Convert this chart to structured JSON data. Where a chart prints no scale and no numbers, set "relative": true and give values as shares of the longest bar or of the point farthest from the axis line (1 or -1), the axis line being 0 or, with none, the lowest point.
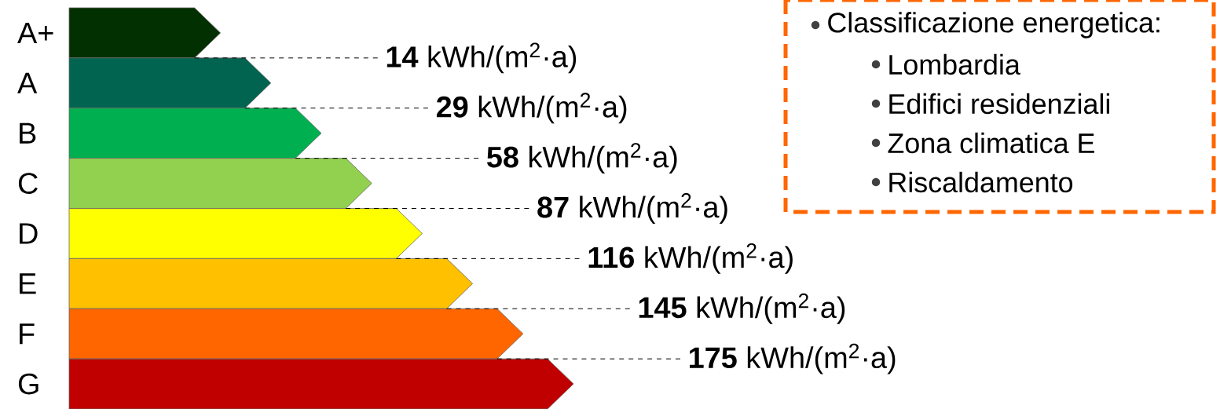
{
  "chart_data": {
    "type": "bar",
    "orientation": "horizontal",
    "relative": true,
    "categories": [
      "A+",
      "A",
      "B",
      "C",
      "D",
      "E",
      "F",
      "G"
    ],
    "values": [
      0.3,
      0.4,
      0.5,
      0.6,
      0.7,
      0.8,
      0.9,
      1.0
    ],
    "colors": [
      "#033000",
      "#006450",
      "#00b050",
      "#92d050",
      "#ffff00",
      "#ffc000",
      "#ff6600",
      "#c00000"
    ],
    "annotations": [
      "**14** kWh/(m$^{2}$·a)",
      "**29** kWh/(m$^{2}$·a)",
      "**58** kWh/(m$^{2}$·a)",
      "**87** kWh/(m$^{2}$·a)",
      "**116** kWh/(m$^{2}$·a)",
      "**145** kWh/(m$^{2}$·a)",
      "**175** kWh/(m$^{2}$·a)",
      "Classificazione energetica:",
      "Lombardia",
      "Edifici residenziali",
      "Zona climatica E",
      "Riscaldamento"
    ]
  }
}
